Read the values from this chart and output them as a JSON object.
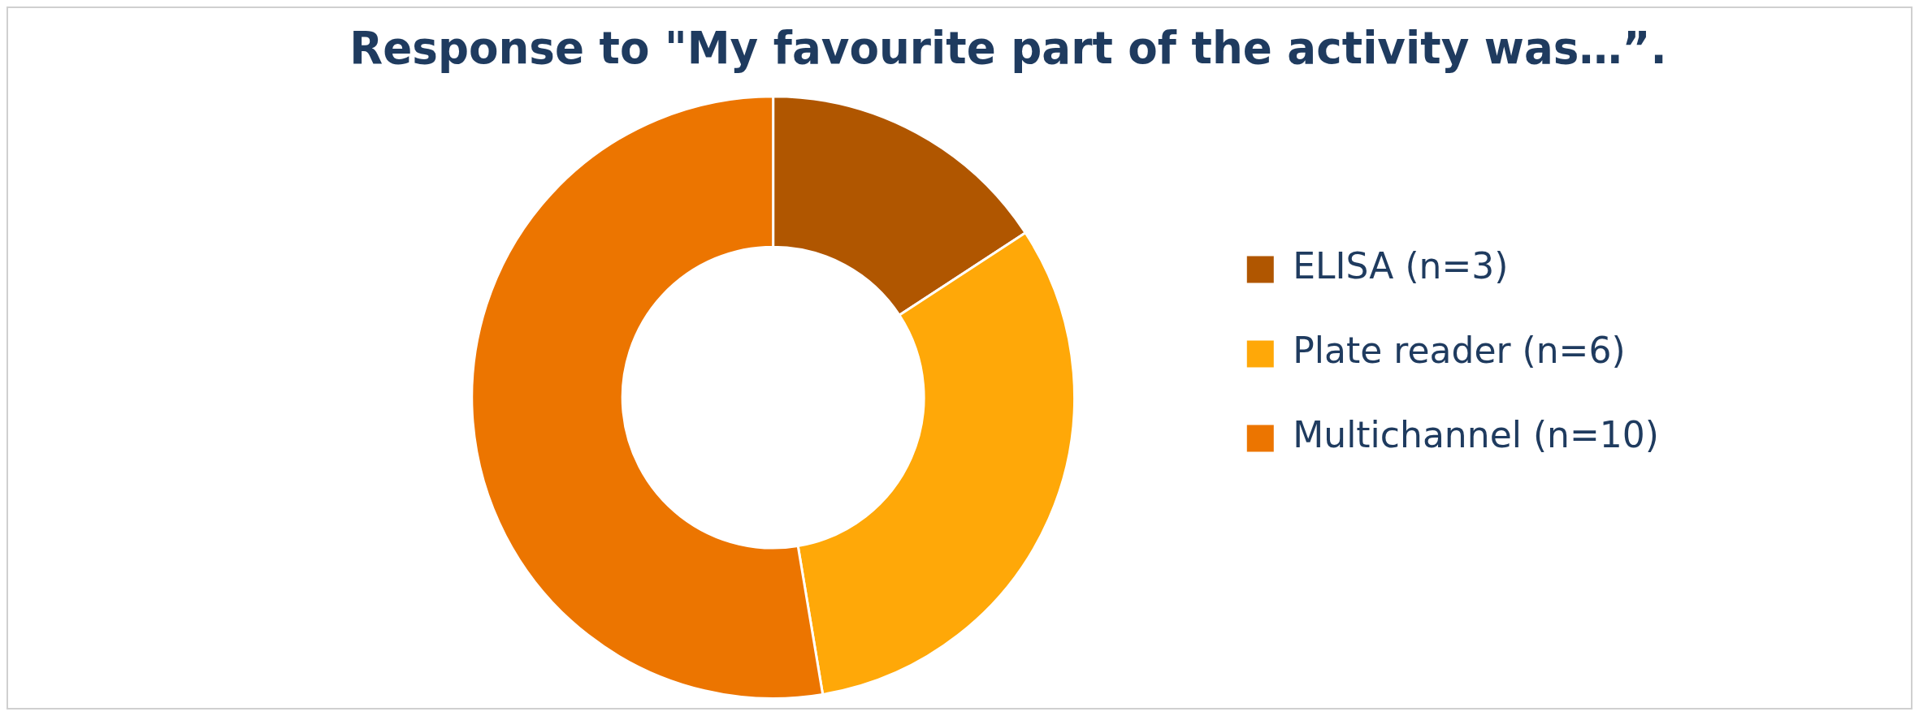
{
  "chart_data": {
    "type": "donut",
    "title": "Response to \"My favourite part of the activity was…”.",
    "categories": [
      "ELISA (n=3)",
      "Plate reader (n=6)",
      "Multichannel (n=10)"
    ],
    "values": [
      3,
      6,
      10
    ],
    "colors": [
      "#b05600",
      "#ffa808",
      "#ec7500"
    ],
    "legend": "right"
  }
}
